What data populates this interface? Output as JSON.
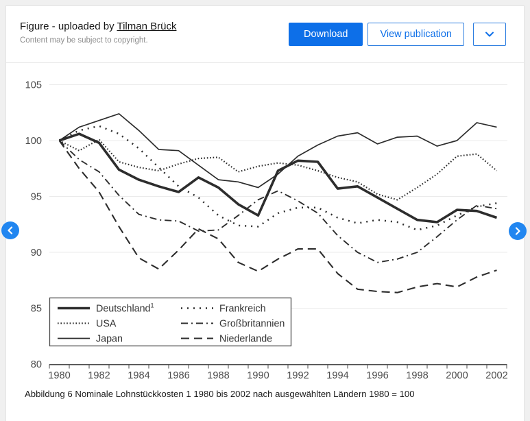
{
  "header": {
    "title_prefix": "Figure - uploaded by ",
    "uploader": "Tilman Brück",
    "copyright": "Content may be subject to copyright.",
    "download_label": "Download",
    "view_publication_label": "View publication"
  },
  "icons": {
    "more_button": "chevron-down-icon",
    "prev_button": "chevron-left-icon",
    "next_button": "chevron-right-icon"
  },
  "colors": {
    "accent_blue": "#0d6fe8",
    "nav_arrow_blue": "#2186f0",
    "chart_line": "#2d2d2d",
    "grid_line": "#ebebeb",
    "axis_line": "#4d4d4d",
    "axis_label": "#4d4d4d"
  },
  "figure_caption": "Abbildung 6 Nominale Lohnstückkosten 1 1980 bis 2002 nach ausgewählten Ländern 1980 = 100",
  "chart_data": {
    "type": "line",
    "title": "",
    "xlabel": "",
    "ylabel": "",
    "x": [
      1980,
      1981,
      1982,
      1983,
      1984,
      1985,
      1986,
      1987,
      1988,
      1989,
      1990,
      1991,
      1992,
      1993,
      1994,
      1995,
      1996,
      1997,
      1998,
      1999,
      2000,
      2001,
      2002
    ],
    "x_tick_labels": [
      "1980",
      "1982",
      "1984",
      "1986",
      "1988",
      "1990",
      "1992",
      "1994",
      "1996",
      "1998",
      "2000",
      "2002"
    ],
    "ylim": [
      80,
      105
    ],
    "yticks": [
      80,
      85,
      90,
      95,
      100,
      105
    ],
    "grid": "horizontal",
    "legend_position": "bottom-left-box",
    "base_index_note": "1980 = 100",
    "series": [
      {
        "name": "Deutschland",
        "superscript": "1",
        "style": "solid-thick",
        "values": [
          100.0,
          100.6,
          99.8,
          97.4,
          96.5,
          95.9,
          95.4,
          96.7,
          95.8,
          94.3,
          93.3,
          97.3,
          98.2,
          98.1,
          95.7,
          95.9,
          94.9,
          93.9,
          92.9,
          92.7,
          93.8,
          93.7,
          93.1
        ]
      },
      {
        "name": "USA",
        "superscript": "",
        "style": "dotted-fine",
        "values": [
          100.0,
          99.1,
          100.1,
          98.1,
          97.6,
          97.3,
          97.9,
          98.4,
          98.5,
          97.2,
          97.7,
          98.0,
          97.8,
          97.3,
          96.7,
          96.3,
          95.2,
          94.7,
          95.8,
          97.0,
          98.6,
          98.8,
          97.3
        ]
      },
      {
        "name": "Japan",
        "superscript": "",
        "style": "solid-thin",
        "values": [
          100.0,
          101.2,
          101.8,
          102.4,
          100.9,
          99.2,
          99.1,
          97.8,
          96.5,
          96.3,
          95.8,
          97.0,
          98.6,
          99.6,
          100.4,
          100.7,
          99.7,
          100.3,
          100.4,
          99.5,
          100.0,
          101.6,
          101.2
        ]
      },
      {
        "name": "Frankreich",
        "superscript": "",
        "style": "dotted-spaced",
        "values": [
          100.0,
          100.9,
          101.3,
          100.6,
          99.3,
          97.6,
          95.9,
          94.9,
          93.3,
          92.4,
          92.3,
          93.5,
          94.0,
          94.0,
          93.1,
          92.6,
          92.9,
          92.7,
          92.0,
          92.4,
          93.3,
          94.1,
          94.4
        ]
      },
      {
        "name": "Großbritannien",
        "superscript": "",
        "style": "dash-dot",
        "values": [
          100.0,
          98.3,
          97.2,
          95.1,
          93.4,
          92.9,
          92.8,
          91.9,
          92.0,
          93.3,
          94.7,
          95.5,
          94.6,
          93.5,
          91.5,
          90.0,
          89.1,
          89.4,
          90.0,
          91.4,
          92.9,
          94.2,
          93.9
        ]
      },
      {
        "name": "Niederlande",
        "superscript": "",
        "style": "dashed",
        "values": [
          100.0,
          97.5,
          95.4,
          92.3,
          89.5,
          88.5,
          90.2,
          92.1,
          91.2,
          89.1,
          88.3,
          89.4,
          90.3,
          90.3,
          88.1,
          86.7,
          86.5,
          86.4,
          86.9,
          87.2,
          86.9,
          87.8,
          88.4
        ]
      }
    ]
  }
}
